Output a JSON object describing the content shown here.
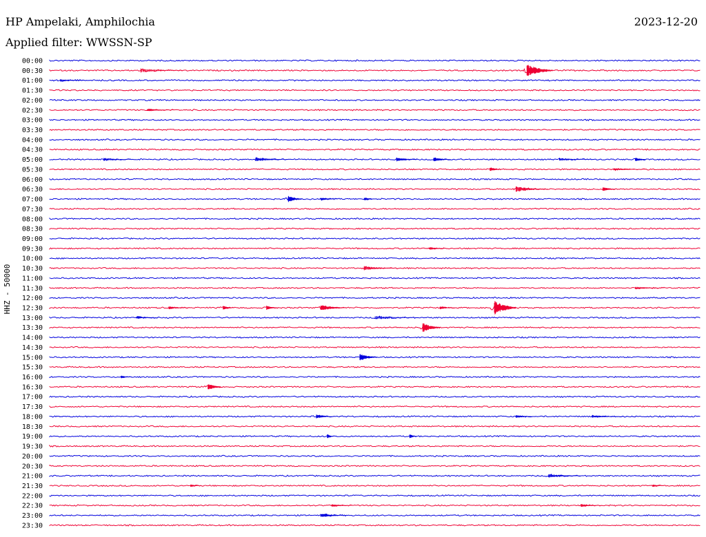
{
  "header": {
    "station": "HP Ampelaki, Amphilochia",
    "date": "2023-12-20",
    "filter": "Applied filter: WWSSN-SP"
  },
  "chart_data": {
    "type": "line",
    "title": "HP Ampelaki, Amphilochia",
    "ylabel": "HHZ - 50000",
    "colors": [
      "#0000dd",
      "#ee0033"
    ],
    "rows": [
      "00:00",
      "00:30",
      "01:00",
      "01:30",
      "02:00",
      "02:30",
      "03:00",
      "03:30",
      "04:00",
      "04:30",
      "05:00",
      "05:30",
      "06:00",
      "06:30",
      "07:00",
      "07:30",
      "08:00",
      "08:30",
      "09:00",
      "09:30",
      "10:00",
      "10:30",
      "11:00",
      "11:30",
      "12:00",
      "12:30",
      "13:00",
      "13:30",
      "14:00",
      "14:30",
      "15:00",
      "15:30",
      "16:00",
      "16:30",
      "17:00",
      "17:30",
      "18:00",
      "18:30",
      "19:00",
      "19:30",
      "20:00",
      "20:30",
      "21:00",
      "21:30",
      "22:00",
      "22:30",
      "23:00",
      "23:30"
    ],
    "events": [
      {
        "row": 1,
        "minute": 4.2,
        "amp": 3,
        "dur": 2.0
      },
      {
        "row": 1,
        "minute": 22.0,
        "amp": 9,
        "dur": 1.2
      },
      {
        "row": 2,
        "minute": 0.5,
        "amp": 2,
        "dur": 1.5
      },
      {
        "row": 5,
        "minute": 4.5,
        "amp": 2,
        "dur": 1.2
      },
      {
        "row": 10,
        "minute": 2.5,
        "amp": 2,
        "dur": 1.5
      },
      {
        "row": 10,
        "minute": 9.5,
        "amp": 3,
        "dur": 1.5
      },
      {
        "row": 10,
        "minute": 16.0,
        "amp": 3,
        "dur": 1.0
      },
      {
        "row": 10,
        "minute": 17.7,
        "amp": 3,
        "dur": 0.8
      },
      {
        "row": 10,
        "minute": 23.5,
        "amp": 2,
        "dur": 1.5
      },
      {
        "row": 10,
        "minute": 27.0,
        "amp": 3,
        "dur": 0.5
      },
      {
        "row": 11,
        "minute": 20.3,
        "amp": 3,
        "dur": 0.5
      },
      {
        "row": 11,
        "minute": 26.0,
        "amp": 2,
        "dur": 1.5
      },
      {
        "row": 13,
        "minute": 21.5,
        "amp": 4,
        "dur": 1.5
      },
      {
        "row": 13,
        "minute": 25.5,
        "amp": 3,
        "dur": 0.6
      },
      {
        "row": 14,
        "minute": 11.0,
        "amp": 5,
        "dur": 0.6
      },
      {
        "row": 14,
        "minute": 12.5,
        "amp": 2,
        "dur": 0.8
      },
      {
        "row": 14,
        "minute": 14.5,
        "amp": 2,
        "dur": 0.6
      },
      {
        "row": 19,
        "minute": 17.5,
        "amp": 2,
        "dur": 0.8
      },
      {
        "row": 21,
        "minute": 14.5,
        "amp": 3,
        "dur": 1.5
      },
      {
        "row": 23,
        "minute": 27.0,
        "amp": 2,
        "dur": 1.5
      },
      {
        "row": 25,
        "minute": 5.5,
        "amp": 2,
        "dur": 1.0
      },
      {
        "row": 25,
        "minute": 8.0,
        "amp": 3,
        "dur": 0.5
      },
      {
        "row": 25,
        "minute": 10.0,
        "amp": 3,
        "dur": 0.5
      },
      {
        "row": 25,
        "minute": 12.5,
        "amp": 4,
        "dur": 1.2
      },
      {
        "row": 25,
        "minute": 18.0,
        "amp": 2,
        "dur": 0.8
      },
      {
        "row": 25,
        "minute": 20.5,
        "amp": 11,
        "dur": 1.0
      },
      {
        "row": 26,
        "minute": 4.0,
        "amp": 2,
        "dur": 1.0
      },
      {
        "row": 26,
        "minute": 15.0,
        "amp": 3,
        "dur": 2.0
      },
      {
        "row": 27,
        "minute": 17.2,
        "amp": 7,
        "dur": 0.8
      },
      {
        "row": 30,
        "minute": 14.3,
        "amp": 5,
        "dur": 0.8
      },
      {
        "row": 32,
        "minute": 3.3,
        "amp": 2,
        "dur": 0.5
      },
      {
        "row": 33,
        "minute": 7.3,
        "amp": 5,
        "dur": 0.6
      },
      {
        "row": 36,
        "minute": 12.3,
        "amp": 3,
        "dur": 0.7
      },
      {
        "row": 36,
        "minute": 21.5,
        "amp": 2,
        "dur": 1.0
      },
      {
        "row": 36,
        "minute": 25.0,
        "amp": 2,
        "dur": 1.5
      },
      {
        "row": 38,
        "minute": 12.8,
        "amp": 3,
        "dur": 0.3
      },
      {
        "row": 38,
        "minute": 16.6,
        "amp": 3,
        "dur": 0.3
      },
      {
        "row": 42,
        "minute": 23.0,
        "amp": 3,
        "dur": 1.5
      },
      {
        "row": 43,
        "minute": 6.5,
        "amp": 2,
        "dur": 0.5
      },
      {
        "row": 43,
        "minute": 27.8,
        "amp": 2,
        "dur": 0.5
      },
      {
        "row": 45,
        "minute": 13.0,
        "amp": 2,
        "dur": 1.0
      },
      {
        "row": 45,
        "minute": 24.5,
        "amp": 2,
        "dur": 1.0
      },
      {
        "row": 46,
        "minute": 12.5,
        "amp": 3,
        "dur": 1.2
      }
    ]
  }
}
